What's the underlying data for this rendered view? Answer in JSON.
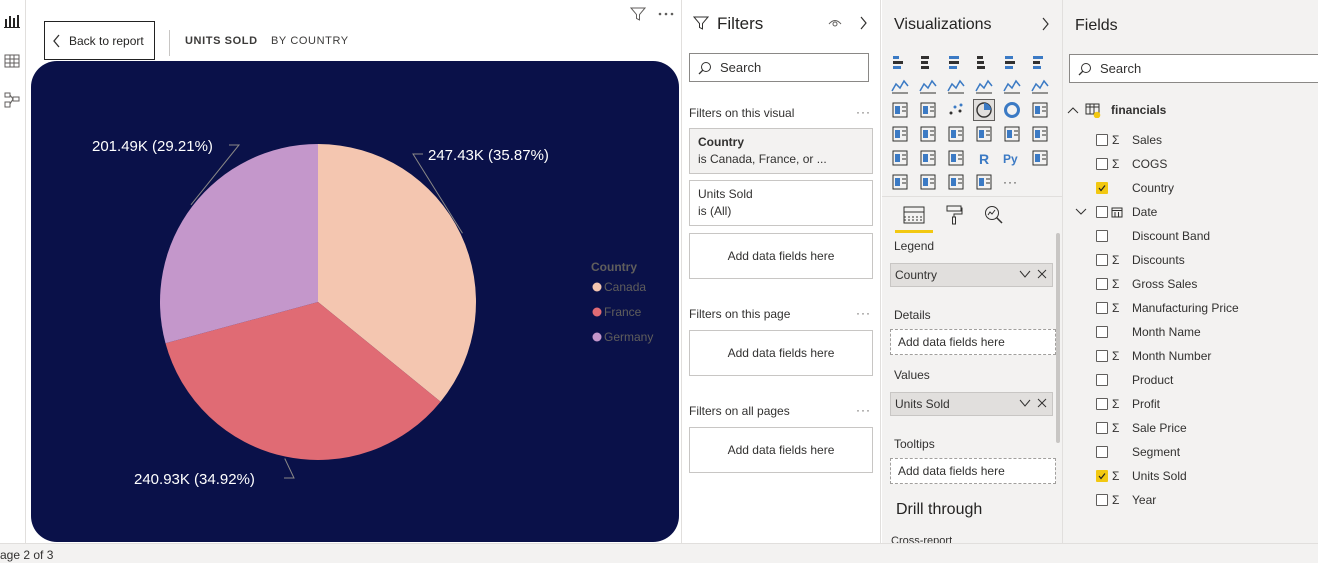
{
  "canvas": {
    "back_button": "Back to report",
    "crumb_title": "UNITS SOLD",
    "crumb_subtitle": "BY COUNTRY"
  },
  "chart_data": {
    "type": "pie",
    "legend_title": "Country",
    "legend_position": "right",
    "categories": [
      "Canada",
      "France",
      "Germany"
    ],
    "values": [
      247.43,
      240.93,
      201.49
    ],
    "percents": [
      35.87,
      34.92,
      29.21
    ],
    "data_labels": [
      "247.43K (35.87%)",
      "240.93K (34.92%)",
      "201.49K (29.21%)"
    ],
    "colors": [
      "#f4c6b0",
      "#e06b74",
      "#c497cb"
    ],
    "background": "#0a1149"
  },
  "filters": {
    "title": "Filters",
    "search_placeholder": "Search",
    "on_visual_label": "Filters on this visual",
    "cards": [
      {
        "name": "Country",
        "desc": "is Canada, France, or ..."
      },
      {
        "name": "Units Sold",
        "desc": "is (All)"
      }
    ],
    "add_fields": "Add data fields here",
    "on_page_label": "Filters on this page",
    "on_all_label": "Filters on all pages",
    "more": "···"
  },
  "viz": {
    "title": "Visualizations",
    "more_visuals": "···",
    "wells": {
      "legend_label": "Legend",
      "legend_value": "Country",
      "details_label": "Details",
      "values_label": "Values",
      "values_value": "Units Sold",
      "tooltips_label": "Tooltips",
      "add_fields": "Add data fields here"
    },
    "drill_title": "Drill through",
    "cross_report": "Cross-report"
  },
  "fields": {
    "title": "Fields",
    "search_placeholder": "Search",
    "table_name": "financials",
    "items": [
      {
        "label": "Sales",
        "sigma": true,
        "checked": false
      },
      {
        "label": "COGS",
        "sigma": true,
        "checked": false
      },
      {
        "label": "Country",
        "sigma": false,
        "checked": true
      },
      {
        "label": "Date",
        "sigma": false,
        "checked": false
      },
      {
        "label": "Discount Band",
        "sigma": false,
        "checked": false
      },
      {
        "label": "Discounts",
        "sigma": true,
        "checked": false
      },
      {
        "label": "Gross Sales",
        "sigma": true,
        "checked": false
      },
      {
        "label": "Manufacturing Price",
        "sigma": true,
        "checked": false
      },
      {
        "label": "Month Name",
        "sigma": false,
        "checked": false
      },
      {
        "label": "Month Number",
        "sigma": true,
        "checked": false
      },
      {
        "label": "Product",
        "sigma": false,
        "checked": false
      },
      {
        "label": "Profit",
        "sigma": true,
        "checked": false
      },
      {
        "label": "Sale Price",
        "sigma": true,
        "checked": false
      },
      {
        "label": "Segment",
        "sigma": false,
        "checked": false
      },
      {
        "label": "Units Sold",
        "sigma": true,
        "checked": true
      },
      {
        "label": "Year",
        "sigma": true,
        "checked": false
      }
    ]
  },
  "status": {
    "page_indicator": "age 2 of 3"
  },
  "colors": {
    "accent": "#f2c811",
    "pane_bg": "#f3f2f1"
  }
}
